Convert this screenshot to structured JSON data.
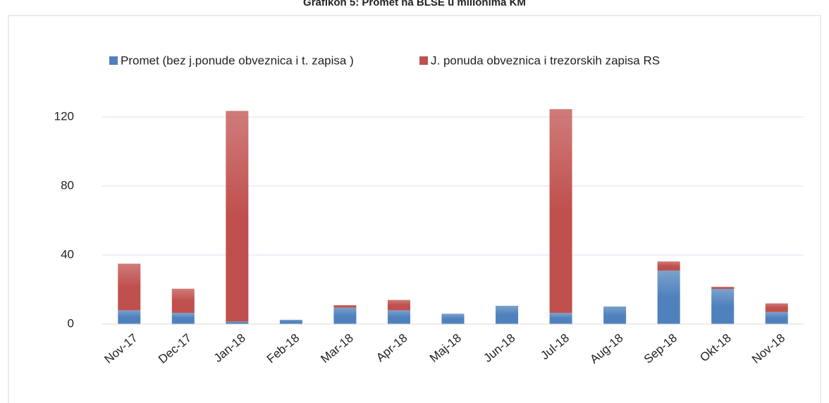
{
  "chart_data": {
    "type": "stacked_bar",
    "title": "Grafikon 5: Promet na BLSE u milionima KM",
    "categories": [
      "Nov-17",
      "Dec-17",
      "Jan-18",
      "Feb-18",
      "Mar-18",
      "Apr-18",
      "Maj-18",
      "Jun-18",
      "Jul-18",
      "Aug-18",
      "Sep-18",
      "Okt-18",
      "Nov-18"
    ],
    "series": [
      {
        "name": "Promet (bez j.ponude obveznica i t. zapisa )",
        "color": "#4f81bd",
        "values": [
          8,
          6.5,
          1.5,
          2.5,
          9.5,
          8,
          6,
          10.6,
          6.5,
          10.2,
          31,
          20.4,
          7
        ]
      },
      {
        "name": "J. ponuda obveznica i trezorskih zapisa RS",
        "color": "#c0504d",
        "values": [
          27,
          14,
          122,
          0,
          1.5,
          6,
          0,
          0,
          118,
          0,
          5.3,
          1.2,
          5
        ]
      }
    ],
    "ylim": [
      0,
      140
    ],
    "yticks": [
      0,
      40,
      80,
      120
    ],
    "grid": true,
    "legend": "top"
  }
}
